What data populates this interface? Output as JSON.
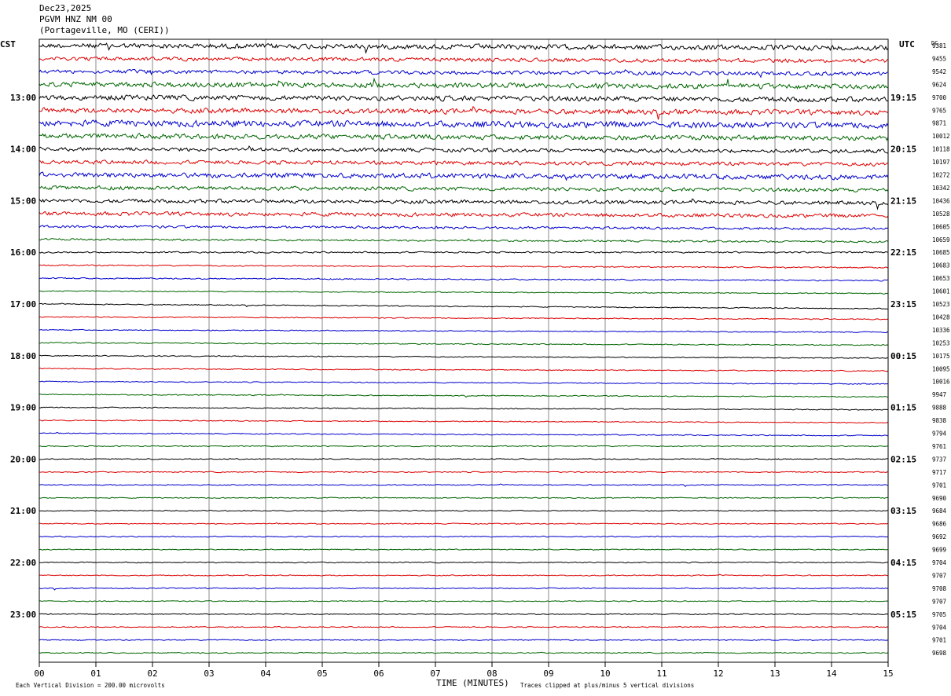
{
  "header": {
    "date": "Dec23,2025",
    "station": "PGVM HNZ NM 00",
    "location": "(Portageville, MO (CERI))"
  },
  "labels": {
    "left_zone": "CST",
    "right_zone": "UTC",
    "dc": "DC",
    "xlabel": "TIME (MINUTES)",
    "scale_note": "Each Vertical Division =  200.00 microvolts",
    "clip_note": "Traces clipped at plus/minus 5 vertical divisions"
  },
  "colors": {
    "trace_cycle": [
      "#000000",
      "#dd0000",
      "#0000cc",
      "#006600"
    ],
    "grid": "#888888"
  },
  "chart_data": {
    "type": "line",
    "title": "PGVM HNZ NM 00",
    "xlabel": "TIME (MINUTES)",
    "xlim": [
      0,
      15
    ],
    "x_ticks": [
      "00",
      "01",
      "02",
      "03",
      "04",
      "05",
      "06",
      "07",
      "08",
      "09",
      "10",
      "11",
      "12",
      "13",
      "14",
      "15"
    ],
    "left_hour_labels": [
      "13:00",
      "14:00",
      "15:00",
      "16:00",
      "17:00",
      "18:00",
      "19:00",
      "20:00",
      "21:00",
      "22:00",
      "23:00"
    ],
    "right_hour_labels": [
      "19:15",
      "20:15",
      "21:15",
      "22:15",
      "23:15",
      "00:15",
      "01:15",
      "02:15",
      "03:15",
      "04:15",
      "05:15"
    ],
    "first_hour_label_row": 4,
    "rows_per_hour": 4,
    "dc_values": [
      "9381",
      "9455",
      "9542",
      "9624",
      "9700",
      "9765",
      "9871",
      "10012",
      "10118",
      "10197",
      "10272",
      "10342",
      "10436",
      "10528",
      "10605",
      "10659",
      "10685",
      "10683",
      "10653",
      "10601",
      "10523",
      "10428",
      "10336",
      "10253",
      "10175",
      "10095",
      "10016",
      "9947",
      "9888",
      "9838",
      "9794",
      "9761",
      "9737",
      "9717",
      "9701",
      "9690",
      "9684",
      "9686",
      "9692",
      "9699",
      "9704",
      "9707",
      "9708",
      "9707",
      "9705",
      "9704",
      "9701",
      "9698"
    ],
    "noise_level": [
      4,
      3,
      3,
      4,
      4,
      4,
      5,
      4,
      3,
      3,
      4,
      3,
      3,
      3,
      2,
      1.5,
      1.2,
      1,
      1,
      0.8,
      0.8,
      0.8,
      0.8,
      0.8,
      0.8,
      0.8,
      0.8,
      0.8,
      0.8,
      0.8,
      0.8,
      0.8,
      0.8,
      0.8,
      0.8,
      0.8,
      0.8,
      0.8,
      0.8,
      0.8,
      0.8,
      0.8,
      0.8,
      0.8,
      0.8,
      0.8,
      0.8,
      0.8
    ],
    "trace_slope": [
      -1,
      -1,
      -1,
      -1,
      -1,
      -1,
      -1,
      -1,
      -1,
      -1,
      -1,
      -1,
      -1,
      -1,
      -1,
      -1,
      0,
      -1,
      -1,
      -1,
      -2,
      -1,
      -1,
      -1,
      -1,
      -1,
      -1,
      -1,
      -1,
      -1,
      -1,
      0,
      0,
      0,
      0,
      0,
      0,
      0,
      0,
      0,
      0,
      0,
      0,
      0,
      0,
      0,
      0,
      0
    ]
  }
}
